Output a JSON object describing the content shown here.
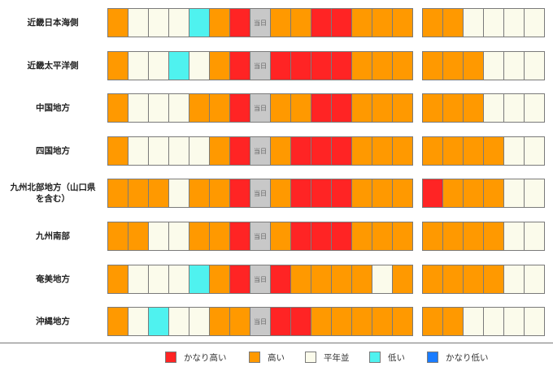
{
  "colors": {
    "very_high": "#ff2424",
    "high": "#ff9900",
    "normal": "#fbfbeb",
    "low": "#4ff2ef",
    "very_low": "#1a7cff",
    "today": "#c8c8c8"
  },
  "today_label": "当日",
  "rows": [
    {
      "name": "近畿日本海側",
      "left_cells": [
        "high",
        "normal",
        "normal",
        "normal",
        "low",
        "high",
        "very_high",
        "today",
        "high",
        "high",
        "very_high",
        "very_high",
        "high",
        "high",
        "high"
      ],
      "right_cells": [
        "high",
        "high",
        "normal",
        "normal",
        "normal",
        "normal"
      ]
    },
    {
      "name": "近畿太平洋側",
      "left_cells": [
        "high",
        "normal",
        "normal",
        "low",
        "normal",
        "high",
        "very_high",
        "today",
        "very_high",
        "very_high",
        "very_high",
        "very_high",
        "high",
        "high",
        "high"
      ],
      "right_cells": [
        "high",
        "high",
        "high",
        "normal",
        "normal",
        "normal"
      ]
    },
    {
      "name": "中国地方",
      "left_cells": [
        "high",
        "normal",
        "normal",
        "normal",
        "high",
        "high",
        "very_high",
        "today",
        "high",
        "high",
        "very_high",
        "very_high",
        "high",
        "high",
        "high"
      ],
      "right_cells": [
        "high",
        "high",
        "high",
        "normal",
        "normal",
        "normal"
      ]
    },
    {
      "name": "四国地方",
      "left_cells": [
        "high",
        "normal",
        "normal",
        "normal",
        "normal",
        "high",
        "very_high",
        "today",
        "high",
        "very_high",
        "very_high",
        "very_high",
        "high",
        "high",
        "high"
      ],
      "right_cells": [
        "high",
        "high",
        "high",
        "high",
        "normal",
        "normal"
      ]
    },
    {
      "name": "九州北部地方（山口県\nを含む）",
      "left_cells": [
        "high",
        "high",
        "high",
        "normal",
        "high",
        "high",
        "very_high",
        "today",
        "high",
        "very_high",
        "very_high",
        "very_high",
        "high",
        "high",
        "high"
      ],
      "right_cells": [
        "very_high",
        "high",
        "high",
        "high",
        "normal",
        "normal"
      ]
    },
    {
      "name": "九州南部",
      "left_cells": [
        "high",
        "high",
        "normal",
        "normal",
        "high",
        "high",
        "very_high",
        "today",
        "high",
        "very_high",
        "very_high",
        "very_high",
        "high",
        "high",
        "high"
      ],
      "right_cells": [
        "high",
        "high",
        "high",
        "high",
        "normal",
        "normal"
      ]
    },
    {
      "name": "奄美地方",
      "left_cells": [
        "high",
        "normal",
        "normal",
        "normal",
        "low",
        "high",
        "very_high",
        "today",
        "very_high",
        "high",
        "high",
        "high",
        "high",
        "normal",
        "high"
      ],
      "right_cells": [
        "high",
        "high",
        "high",
        "high",
        "normal",
        "normal"
      ]
    },
    {
      "name": "沖縄地方",
      "left_cells": [
        "high",
        "normal",
        "low",
        "normal",
        "normal",
        "high",
        "high",
        "today",
        "very_high",
        "very_high",
        "high",
        "high",
        "high",
        "high",
        "high"
      ],
      "right_cells": [
        "high",
        "high",
        "normal",
        "normal",
        "normal",
        "normal"
      ]
    }
  ],
  "legend": [
    {
      "key": "very_high",
      "label": "かなり高い"
    },
    {
      "key": "high",
      "label": "高い"
    },
    {
      "key": "normal",
      "label": "平年並"
    },
    {
      "key": "low",
      "label": "低い"
    },
    {
      "key": "very_low",
      "label": "かなり低い"
    }
  ]
}
